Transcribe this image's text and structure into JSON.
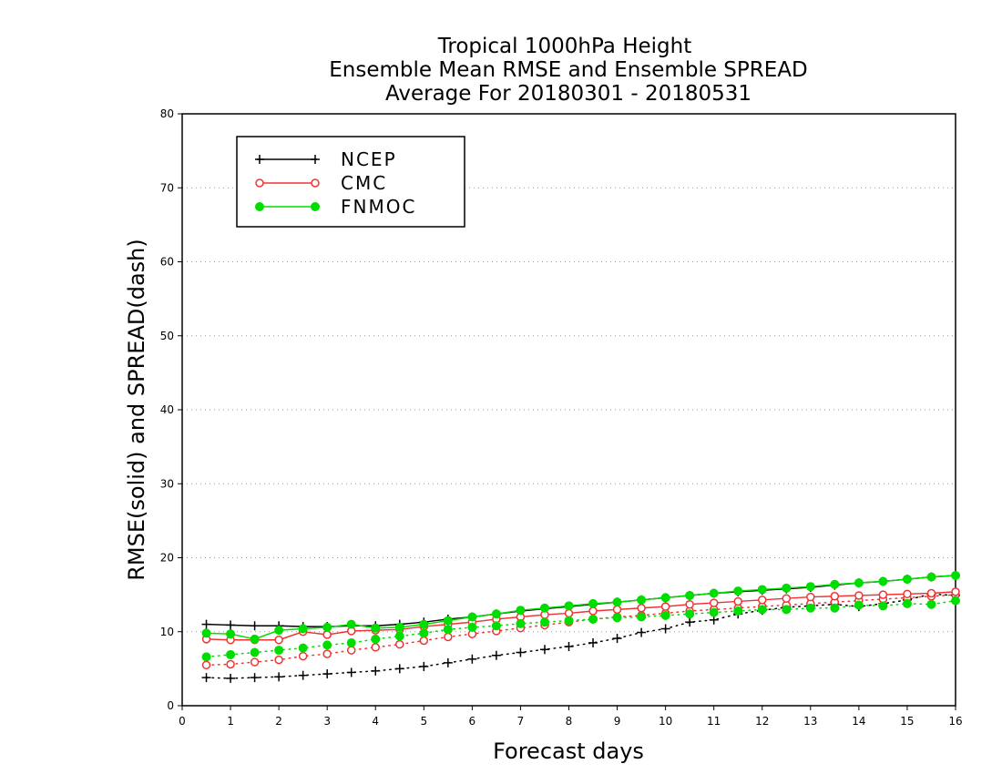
{
  "chart_data": {
    "type": "line",
    "title": [
      "Tropical 1000hPa Height",
      "Ensemble Mean RMSE and Ensemble SPREAD",
      "Average For 20180301 - 20180531"
    ],
    "xlabel": "Forecast days",
    "ylabel": "RMSE(solid) and SPREAD(dash)",
    "xlim": [
      0,
      16
    ],
    "ylim": [
      0,
      80
    ],
    "xticks": [
      0,
      1,
      2,
      3,
      4,
      5,
      6,
      7,
      8,
      9,
      10,
      11,
      12,
      13,
      14,
      15,
      16
    ],
    "yticks": [
      0,
      10,
      20,
      30,
      40,
      50,
      60,
      70,
      80
    ],
    "grid": "horizontal dotted",
    "legend_position": "top-left",
    "x": [
      0.5,
      1,
      1.5,
      2,
      2.5,
      3,
      3.5,
      4,
      4.5,
      5,
      5.5,
      6,
      6.5,
      7,
      7.5,
      8,
      8.5,
      9,
      9.5,
      10,
      10.5,
      11,
      11.5,
      12,
      12.5,
      13,
      13.5,
      14,
      14.5,
      15,
      15.5,
      16
    ],
    "series": [
      {
        "name": "NCEP",
        "color": "#000000",
        "marker": "plus",
        "rmse": [
          11.0,
          10.9,
          10.8,
          10.8,
          10.7,
          10.7,
          10.8,
          10.8,
          11.0,
          11.3,
          11.7,
          12.0,
          12.4,
          12.8,
          13.1,
          13.4,
          13.7,
          14.0,
          14.3,
          14.6,
          14.9,
          15.2,
          15.4,
          15.6,
          15.8,
          16.0,
          16.3,
          16.6,
          16.8,
          17.1,
          17.4,
          17.6
        ],
        "spread": [
          3.8,
          3.7,
          3.8,
          3.9,
          4.1,
          4.3,
          4.5,
          4.7,
          5.0,
          5.3,
          5.8,
          6.3,
          6.8,
          7.2,
          7.6,
          8.0,
          8.5,
          9.1,
          9.9,
          10.4,
          11.3,
          11.6,
          12.4,
          12.9,
          13.3,
          13.5,
          13.7,
          13.4,
          13.8,
          14.3,
          15.1,
          14.9
        ]
      },
      {
        "name": "CMC",
        "color": "#ee3333",
        "marker": "open-circle",
        "rmse": [
          9.0,
          8.9,
          8.9,
          8.9,
          10.0,
          9.6,
          10.1,
          10.2,
          10.3,
          10.7,
          11.0,
          11.3,
          11.7,
          12.0,
          12.3,
          12.5,
          12.8,
          13.0,
          13.2,
          13.4,
          13.7,
          13.9,
          14.1,
          14.3,
          14.5,
          14.7,
          14.8,
          14.9,
          15.0,
          15.1,
          15.2,
          15.4
        ],
        "spread": [
          5.5,
          5.6,
          5.9,
          6.2,
          6.7,
          7.0,
          7.5,
          7.9,
          8.3,
          8.8,
          9.3,
          9.7,
          10.1,
          10.5,
          10.9,
          11.3,
          11.7,
          12.0,
          12.2,
          12.5,
          12.8,
          13.0,
          13.2,
          13.4,
          13.6,
          13.8,
          14.0,
          14.2,
          14.4,
          14.6,
          14.8,
          15.0
        ]
      },
      {
        "name": "FNMOC",
        "color": "#00dd00",
        "marker": "filled-circle",
        "rmse": [
          9.8,
          9.7,
          9.0,
          10.2,
          10.4,
          10.6,
          11.0,
          10.5,
          10.6,
          11.0,
          11.5,
          12.0,
          12.4,
          12.9,
          13.2,
          13.5,
          13.8,
          14.0,
          14.3,
          14.6,
          14.9,
          15.2,
          15.5,
          15.7,
          15.9,
          16.1,
          16.4,
          16.6,
          16.8,
          17.1,
          17.4,
          17.6
        ],
        "spread": [
          6.6,
          6.9,
          7.2,
          7.5,
          7.8,
          8.2,
          8.5,
          9.0,
          9.4,
          9.8,
          10.3,
          10.6,
          10.8,
          11.1,
          11.3,
          11.5,
          11.7,
          11.9,
          12.0,
          12.2,
          12.4,
          12.6,
          12.8,
          13.0,
          13.0,
          13.2,
          13.2,
          13.6,
          13.5,
          13.8,
          13.7,
          14.2
        ]
      }
    ]
  }
}
